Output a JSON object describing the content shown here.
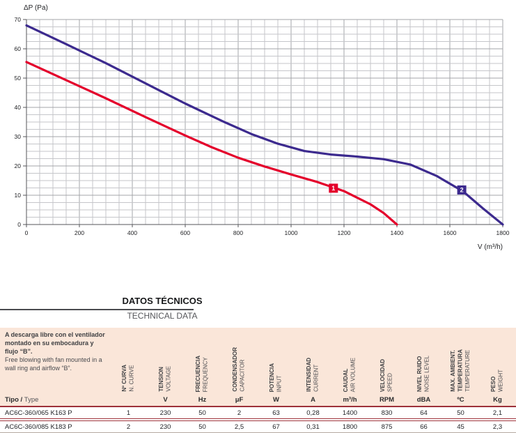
{
  "chart_data": {
    "type": "line",
    "title": "",
    "xlabel": "V (m³/h)",
    "ylabel": "ΔP (Pa)",
    "xlim": [
      0,
      1800
    ],
    "ylim": [
      0,
      70
    ],
    "x_ticks": [
      0,
      200,
      400,
      600,
      800,
      1000,
      1200,
      1400,
      1600,
      1800
    ],
    "y_ticks": [
      0,
      10,
      20,
      30,
      40,
      50,
      60,
      70
    ],
    "x_minor_step": 50,
    "y_minor_step": 2.5,
    "x_major_step": 200,
    "y_major_step": 10,
    "grid": true,
    "legend_position": "none",
    "series": [
      {
        "name": "1",
        "color": "#e4002b",
        "marker": {
          "x": 1160,
          "y": 12.4
        },
        "points": [
          [
            0,
            55.5
          ],
          [
            150,
            49.3
          ],
          [
            300,
            43.1
          ],
          [
            450,
            36.7
          ],
          [
            600,
            30.4
          ],
          [
            700,
            26.4
          ],
          [
            800,
            22.8
          ],
          [
            900,
            19.8
          ],
          [
            1000,
            17.1
          ],
          [
            1100,
            14.5
          ],
          [
            1200,
            11.4
          ],
          [
            1300,
            6.9
          ],
          [
            1350,
            3.9
          ],
          [
            1400,
            0
          ]
        ]
      },
      {
        "name": "2",
        "color": "#3c2a8e",
        "marker": {
          "x": 1645,
          "y": 11.8
        },
        "points": [
          [
            0,
            68
          ],
          [
            150,
            61.6
          ],
          [
            300,
            55.1
          ],
          [
            450,
            48.2
          ],
          [
            600,
            41.3
          ],
          [
            750,
            34.9
          ],
          [
            850,
            30.9
          ],
          [
            950,
            27.6
          ],
          [
            1050,
            25.1
          ],
          [
            1150,
            23.9
          ],
          [
            1250,
            23.2
          ],
          [
            1350,
            22.3
          ],
          [
            1450,
            20.5
          ],
          [
            1550,
            16.6
          ],
          [
            1650,
            11.3
          ],
          [
            1725,
            5.5
          ],
          [
            1800,
            0
          ]
        ]
      }
    ]
  },
  "section_header": {
    "title": "DATOS TÉCNICOS",
    "subtitle": "TECHNICAL DATA"
  },
  "table": {
    "note_es": "A descarga libre con el ventilador montado en su embocadura y flujo “B”.",
    "note_en": "Free blowing with fan mounted in a wall ring and airflow “B”.",
    "type_label_es": "Tipo /",
    "type_label_en": "Type",
    "columns": [
      {
        "es": [
          "Nº CURVA"
        ],
        "en": [
          "N. CURVE"
        ],
        "unit": ""
      },
      {
        "es": [
          "TENSION"
        ],
        "en": [
          "VOLTAGE"
        ],
        "unit": "V"
      },
      {
        "es": [
          "FRECUENCIA"
        ],
        "en": [
          "FREQUENCY"
        ],
        "unit": "Hz"
      },
      {
        "es": [
          "CONDENSADOR"
        ],
        "en": [
          "CAPACITOR"
        ],
        "unit": "μF"
      },
      {
        "es": [
          "POTENCIA"
        ],
        "en": [
          "INPUT"
        ],
        "unit": "W"
      },
      {
        "es": [
          "INTENSIDAD"
        ],
        "en": [
          "CURRENT"
        ],
        "unit": "A"
      },
      {
        "es": [
          "CAUDAL"
        ],
        "en": [
          "AIR VOLUME"
        ],
        "unit": "m³/h"
      },
      {
        "es": [
          "VELOCIDAD"
        ],
        "en": [
          "SPEED"
        ],
        "unit": "RPM"
      },
      {
        "es": [
          "NIVEL RUIDO"
        ],
        "en": [
          "NOISE LEVEL"
        ],
        "unit": "dBA"
      },
      {
        "es": [
          "MAX. AMBIENT.",
          "TEMPERATURA"
        ],
        "en": [
          "TEMPERATURE"
        ],
        "unit": "ºC"
      },
      {
        "es": [
          "PESO"
        ],
        "en": [
          "WEIGHT"
        ],
        "unit": "Kg"
      }
    ],
    "rows": [
      {
        "type": "AC6C-360/065 K163 P",
        "values": [
          "1",
          "230",
          "50",
          "2",
          "63",
          "0,28",
          "1400",
          "830",
          "64",
          "50",
          "2,1"
        ]
      },
      {
        "type": "AC6C-360/085 K183 P",
        "values": [
          "2",
          "230",
          "50",
          "2,5",
          "67",
          "0,31",
          "1800",
          "875",
          "66",
          "45",
          "2,3"
        ]
      }
    ]
  }
}
